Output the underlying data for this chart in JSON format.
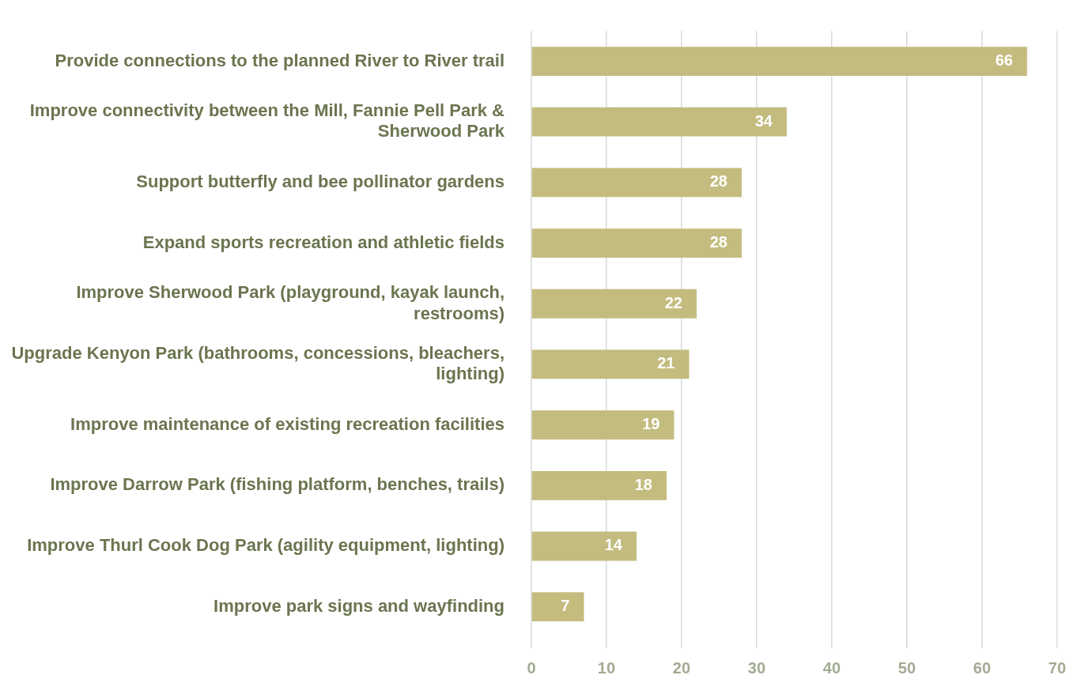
{
  "chart_data": {
    "type": "bar",
    "orientation": "horizontal",
    "categories": [
      "Provide connections to the planned River to River trail",
      "Improve connectivity between the Mill, Fannie Pell Park & Sherwood Park",
      "Support butterfly and bee pollinator gardens",
      "Expand sports recreation and athletic fields",
      "Improve Sherwood Park (playground, kayak launch, restrooms)",
      "Upgrade Kenyon Park (bathrooms, concessions, bleachers, lighting)",
      "Improve maintenance of existing recreation facilities",
      "Improve Darrow Park (fishing platform, benches, trails)",
      "Improve Thurl Cook Dog Park (agility equipment, lighting)",
      "Improve park signs and wayfinding"
    ],
    "values": [
      66,
      34,
      28,
      28,
      22,
      21,
      19,
      18,
      14,
      7
    ],
    "color": "#c3bc7e",
    "xlim": [
      0,
      70
    ],
    "xticks": [
      0,
      10,
      20,
      30,
      40,
      50,
      60,
      70
    ],
    "grid": "x",
    "data_labels": true,
    "legend": false
  }
}
